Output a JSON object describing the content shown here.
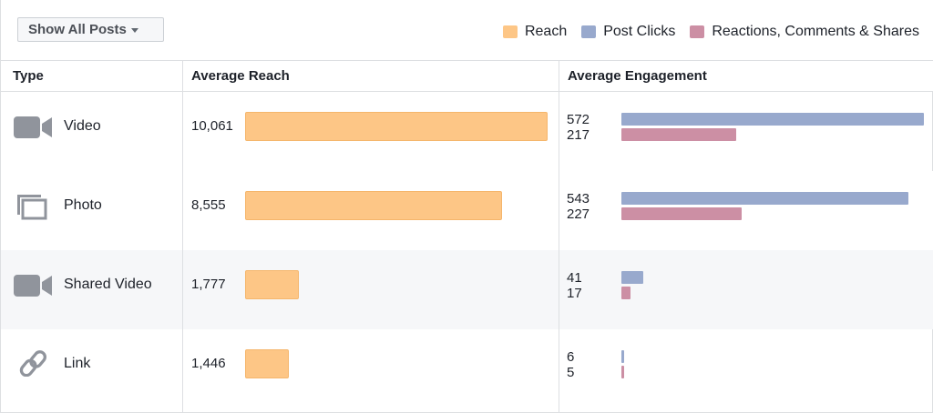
{
  "toolbar": {
    "filter_label": "Show All Posts"
  },
  "legend": [
    {
      "label": "Reach",
      "color": "#fdc686"
    },
    {
      "label": "Post Clicks",
      "color": "#98a9cd"
    },
    {
      "label": "Reactions, Comments & Shares",
      "color": "#cc8fa4"
    }
  ],
  "columns": {
    "type": "Type",
    "reach": "Average Reach",
    "engagement": "Average Engagement"
  },
  "chart_data": {
    "type": "bar",
    "categories": [
      "Video",
      "Photo",
      "Shared Video",
      "Link"
    ],
    "series": [
      {
        "name": "Reach",
        "values": [
          10061,
          8555,
          1777,
          1446
        ]
      },
      {
        "name": "Post Clicks",
        "values": [
          572,
          543,
          41,
          6
        ]
      },
      {
        "name": "Reactions, Comments & Shares",
        "values": [
          217,
          227,
          17,
          5
        ]
      }
    ]
  },
  "rows": [
    {
      "type": "Video",
      "icon": "video-camera-icon",
      "reach_label": "10,061",
      "clicks_label": "572",
      "reactions_label": "217"
    },
    {
      "type": "Photo",
      "icon": "photo-stack-icon",
      "reach_label": "8,555",
      "clicks_label": "543",
      "reactions_label": "227"
    },
    {
      "type": "Shared Video",
      "icon": "video-camera-icon",
      "reach_label": "1,777",
      "clicks_label": "41",
      "reactions_label": "17"
    },
    {
      "type": "Link",
      "icon": "chain-link-icon",
      "reach_label": "1,446",
      "clicks_label": "6",
      "reactions_label": "5"
    }
  ]
}
